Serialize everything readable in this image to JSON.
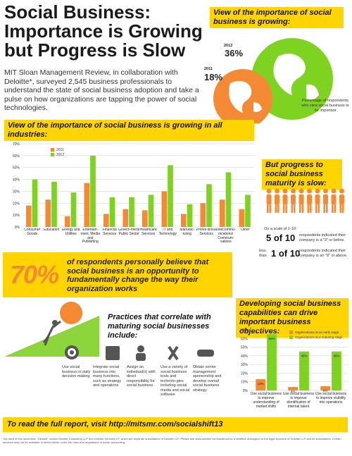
{
  "title": "Social Business: Importance is Growing but Progress is Slow",
  "intro": "MIT Sloan Management Review, in collaboration with Deloitte*, surveyed 2,545 business professionals to understand the state of social business adoption and take a pulse on how organizations are tapping the power of social technologies.",
  "importance": {
    "heading": "View of the importance of social business is growing:",
    "year_2011": "2011",
    "value_2011": "18%",
    "year_2012": "2012",
    "value_2012": "36%",
    "caption": "Percentage of respondents who view social business to be important"
  },
  "colors": {
    "y2011": "#f58a34",
    "y2012": "#7ed321",
    "yellow": "#ffd400",
    "green": "#8cd63c",
    "orange": "#f08a34"
  },
  "chart_data": [
    {
      "type": "bar",
      "title": "View of the importance of social business is growing in all industries:",
      "categories": [
        "Consumer Goods",
        "Education",
        "Energy and Utilities",
        "Entertain-ment, Media and Publishing",
        "Financial Services",
        "Govern-ment/ Public Sector",
        "Healthcare Services",
        "IT and Technology",
        "Manufac-turing",
        "Profes-sional Services",
        "Telecommu-nications/ Communi-cations",
        "Other"
      ],
      "series": [
        {
          "name": "2011",
          "values": [
            18,
            23,
            9,
            37,
            11,
            15,
            14,
            30,
            11,
            20,
            23,
            15
          ]
        },
        {
          "name": "2012",
          "values": [
            40,
            38,
            29,
            60,
            25,
            25,
            27,
            52,
            19,
            36,
            46,
            27
          ]
        }
      ],
      "yticks": [
        "0%",
        "10%",
        "20%",
        "30%",
        "40%",
        "50%",
        "60%",
        "70%"
      ],
      "ylim": [
        0,
        70
      ],
      "legend": "top-left",
      "grid": true
    },
    {
      "type": "bar",
      "title": "Developing social business capabilities can drive important business objectives:",
      "categories": [
        "Use social business to improve understanding of market shifts",
        "Use social business to improve identification of internal talent",
        "Use social business to improve visibility into operations"
      ],
      "series": [
        {
          "name": "Organizations at an early stage",
          "values": [
            13,
            4,
            5
          ],
          "labels": [
            "13%",
            "4%",
            "5%"
          ]
        },
        {
          "name": "Organizations at a maturing stage",
          "values": [
            65,
            45,
            45
          ],
          "labels": [
            "65%",
            "45%",
            "45%"
          ]
        }
      ],
      "yticks": [
        "0%",
        "10%",
        "20%",
        "30%",
        "40%",
        "50%",
        "60%",
        "70%"
      ],
      "ylim": [
        0,
        70
      ],
      "legend": "top-right",
      "grid": true
    }
  ],
  "maturity": {
    "heading": "But progress to social business maturity is slow:",
    "scale_note": "On a scale of 1-10:",
    "row1_big": "5 of 10",
    "row1_text": "respondents indicated their company is a \"3\" or below.",
    "row2_prefix": "less than",
    "row2_big": "1 of 10",
    "row2_text": "respondents indicated their company is an \"8\" or above."
  },
  "seventy": {
    "pct": "70%",
    "text": "of respondents personally believe that social business is an opportunity to fundamentally change the way their organization works"
  },
  "practices": {
    "heading": "Practices that correlate with maturing social businesses include:",
    "items": [
      "Use social business in daily decision making",
      "Integrate social business into many functions, such as strategy and operations",
      "Assign an individual(s) with direct responsibility for social business",
      "Use a variety of social business tools and technolo-gies including social media and social software",
      "Obtain senior management sponsorship and develop overall social business strategy"
    ]
  },
  "report": "To read the full report, visit http://mitsmr.com/socialshift13",
  "footnote": "*As used in this document, \"Deloitte\" means Deloitte Consulting LLP and Deloitte Services LP, which are separate subsidiaries of Deloitte LLP. Please see www.deloitte.com/us/about for a detailed description of the legal structure of Deloitte LLP and its subsidiaries. Certain services may not be available to attest clients under the rules and regulations of public accounting."
}
